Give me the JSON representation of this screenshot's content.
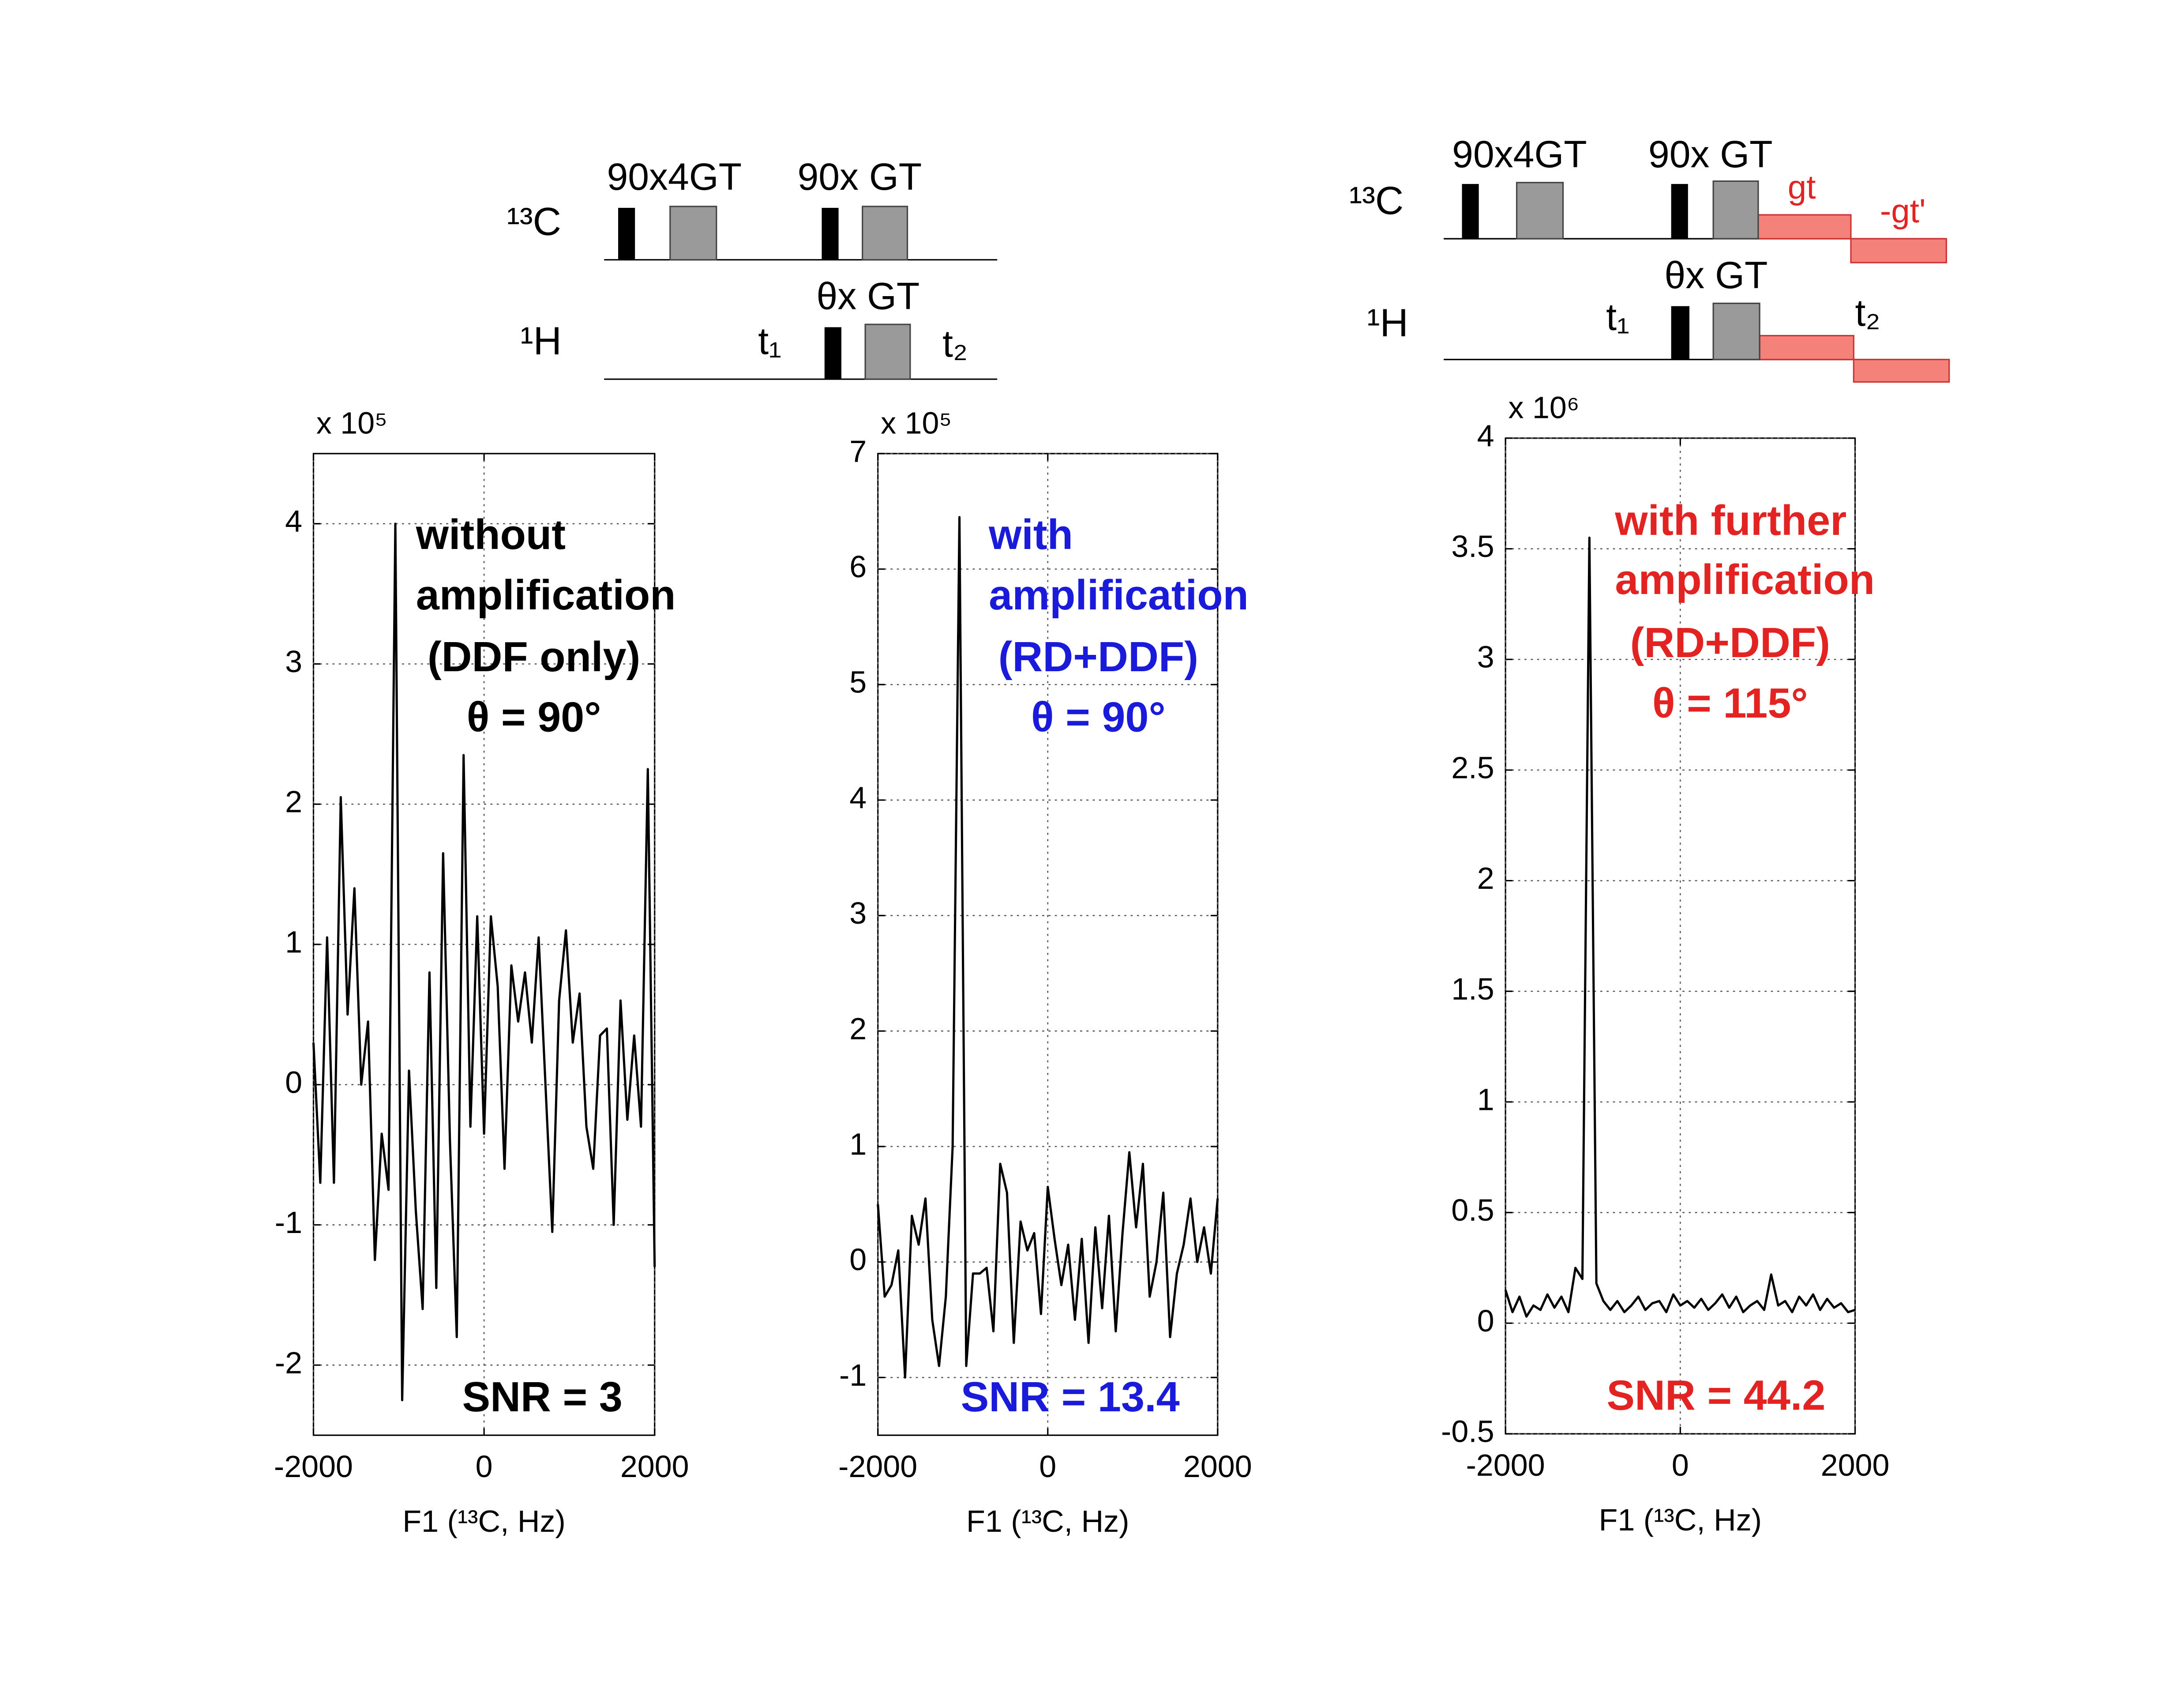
{
  "pulse_sequences": [
    {
      "nucleus_top": "¹³C",
      "nucleus_bottom": "¹H",
      "pulse_top_1": "90x4GT",
      "pulse_top_2": "90x GT",
      "pulse_bottom": "θx GT",
      "delay_1": "t₁",
      "delay_2": "t₂"
    },
    {
      "nucleus_top": "¹³C",
      "nucleus_bottom": "¹H",
      "pulse_top_1": "90x4GT",
      "pulse_top_2": "90x GT",
      "pulse_bottom": "θx GT",
      "delay_1": "t₁",
      "delay_2": "t₂",
      "gradient_1": "gt",
      "gradient_2": "-gt'"
    }
  ],
  "chart_data": [
    {
      "type": "line",
      "multiplier": "x 10⁵",
      "xlabel": "F1 (¹³C, Hz)",
      "color": "#000000",
      "annotation": [
        "without",
        "amplification",
        "(DDF only)",
        "θ = 90°"
      ],
      "snr": "SNR = 3",
      "xlim": [
        -2000,
        2000
      ],
      "xticks": [
        -2000,
        0,
        2000
      ],
      "ylim": [
        -2.5,
        4.5
      ],
      "yticks": [
        -2,
        -1,
        0,
        1,
        2,
        3,
        4
      ],
      "grid": true,
      "x": [
        -2000,
        -1920,
        -1840,
        -1760,
        -1680,
        -1600,
        -1520,
        -1440,
        -1360,
        -1280,
        -1200,
        -1120,
        -1040,
        -960,
        -880,
        -800,
        -720,
        -640,
        -560,
        -480,
        -400,
        -320,
        -240,
        -160,
        -80,
        0,
        80,
        160,
        240,
        320,
        400,
        480,
        560,
        640,
        720,
        800,
        880,
        960,
        1040,
        1120,
        1200,
        1280,
        1360,
        1440,
        1520,
        1600,
        1680,
        1760,
        1840,
        1920,
        2000
      ],
      "values": [
        0.3,
        -0.7,
        1.05,
        -0.7,
        2.05,
        0.5,
        1.4,
        0.0,
        0.45,
        -1.25,
        -0.35,
        -0.75,
        4.0,
        -2.25,
        0.1,
        -0.9,
        -1.6,
        0.8,
        -1.45,
        1.65,
        -0.4,
        -1.8,
        2.35,
        -0.3,
        1.2,
        -0.35,
        1.2,
        0.7,
        -0.6,
        0.85,
        0.45,
        0.8,
        0.3,
        1.05,
        0.0,
        -1.05,
        0.6,
        1.1,
        0.3,
        0.65,
        -0.3,
        -0.6,
        0.35,
        0.4,
        -1.0,
        0.6,
        -0.25,
        0.35,
        -0.3,
        2.25,
        -1.3
      ]
    },
    {
      "type": "line",
      "multiplier": "x 10⁵",
      "xlabel": "F1 (¹³C, Hz)",
      "color": "#1a1adb",
      "annotation": [
        "with",
        "amplification",
        "(RD+DDF)",
        "θ = 90°"
      ],
      "snr": "SNR = 13.4",
      "xlim": [
        -2000,
        2000
      ],
      "xticks": [
        -2000,
        0,
        2000
      ],
      "ylim": [
        -1.5,
        7
      ],
      "yticks": [
        -1,
        0,
        1,
        2,
        3,
        4,
        5,
        6,
        7
      ],
      "grid": true,
      "x": [
        -2000,
        -1920,
        -1840,
        -1760,
        -1680,
        -1600,
        -1520,
        -1440,
        -1360,
        -1280,
        -1200,
        -1120,
        -1040,
        -960,
        -880,
        -800,
        -720,
        -640,
        -560,
        -480,
        -400,
        -320,
        -240,
        -160,
        -80,
        0,
        80,
        160,
        240,
        320,
        400,
        480,
        560,
        640,
        720,
        800,
        880,
        960,
        1040,
        1120,
        1200,
        1280,
        1360,
        1440,
        1520,
        1600,
        1680,
        1760,
        1840,
        1920,
        2000
      ],
      "values": [
        0.5,
        -0.3,
        -0.2,
        0.1,
        -1.0,
        0.4,
        0.15,
        0.55,
        -0.5,
        -0.9,
        -0.3,
        1.0,
        6.45,
        -0.9,
        -0.1,
        -0.1,
        -0.05,
        -0.6,
        0.85,
        0.6,
        -0.7,
        0.35,
        0.1,
        0.25,
        -0.45,
        0.65,
        0.2,
        -0.2,
        0.15,
        -0.5,
        0.2,
        -0.7,
        0.3,
        -0.4,
        0.4,
        -0.6,
        0.25,
        0.95,
        0.3,
        0.85,
        -0.3,
        0.0,
        0.6,
        -0.65,
        -0.1,
        0.15,
        0.55,
        0.0,
        0.3,
        -0.1,
        0.55
      ]
    },
    {
      "type": "line",
      "multiplier": "x 10⁶",
      "xlabel": "F1 (¹³C, Hz)",
      "color": "#e32222",
      "annotation": [
        "with further",
        "amplification",
        "(RD+DDF)",
        "θ = 115°"
      ],
      "snr": "SNR = 44.2",
      "xlim": [
        -2000,
        2000
      ],
      "xticks": [
        -2000,
        0,
        2000
      ],
      "ylim": [
        -0.5,
        4
      ],
      "yticks": [
        -0.5,
        0,
        0.5,
        1,
        1.5,
        2,
        2.5,
        3,
        3.5,
        4
      ],
      "grid": true,
      "x": [
        -2000,
        -1920,
        -1840,
        -1760,
        -1680,
        -1600,
        -1520,
        -1440,
        -1360,
        -1280,
        -1200,
        -1120,
        -1040,
        -960,
        -880,
        -800,
        -720,
        -640,
        -560,
        -480,
        -400,
        -320,
        -240,
        -160,
        -80,
        0,
        80,
        160,
        240,
        320,
        400,
        480,
        560,
        640,
        720,
        800,
        880,
        960,
        1040,
        1120,
        1200,
        1280,
        1360,
        1440,
        1520,
        1600,
        1680,
        1760,
        1840,
        1920,
        2000
      ],
      "values": [
        0.15,
        0.05,
        0.12,
        0.03,
        0.08,
        0.06,
        0.13,
        0.07,
        0.12,
        0.05,
        0.25,
        0.2,
        3.55,
        0.18,
        0.1,
        0.06,
        0.1,
        0.05,
        0.08,
        0.12,
        0.06,
        0.09,
        0.1,
        0.05,
        0.13,
        0.08,
        0.1,
        0.07,
        0.11,
        0.06,
        0.09,
        0.13,
        0.07,
        0.12,
        0.05,
        0.08,
        0.1,
        0.06,
        0.22,
        0.08,
        0.1,
        0.05,
        0.12,
        0.08,
        0.13,
        0.06,
        0.11,
        0.07,
        0.09,
        0.05,
        0.06
      ]
    }
  ]
}
